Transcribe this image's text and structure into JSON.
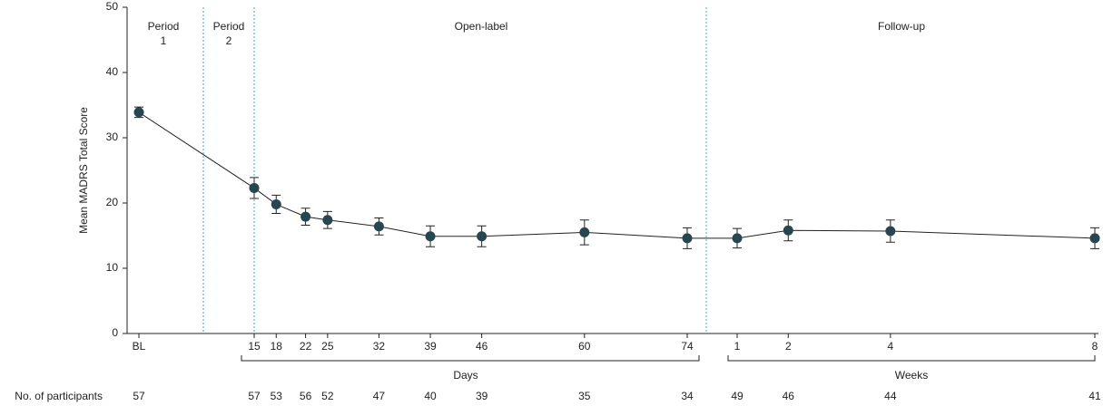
{
  "chart_data": {
    "type": "line",
    "y_label": "Mean MADRS Total Score",
    "ylim": [
      0,
      50
    ],
    "yticks": [
      0,
      10,
      20,
      30,
      40,
      50
    ],
    "categories": [
      "BL",
      15,
      18,
      22,
      25,
      32,
      39,
      46,
      60,
      74,
      1,
      2,
      4,
      8
    ],
    "x_group_labels": [
      "Days",
      "Weeks"
    ],
    "periods": [
      [
        "Period",
        "1"
      ],
      [
        "Period",
        "2"
      ],
      [
        "Open-label"
      ],
      [
        "Follow-up"
      ]
    ],
    "series": [
      {
        "name": "MADRS",
        "color": "#27464f",
        "values": [
          33.9,
          22.3,
          19.8,
          17.9,
          17.4,
          16.4,
          14.9,
          14.9,
          15.5,
          14.6,
          14.6,
          15.8,
          15.7,
          14.6
        ],
        "errors": [
          0.8,
          1.6,
          1.4,
          1.3,
          1.3,
          1.3,
          1.6,
          1.6,
          1.9,
          1.6,
          1.5,
          1.6,
          1.7,
          1.6
        ]
      }
    ],
    "participants_label": "No. of participants",
    "participants": [
      57,
      57,
      53,
      56,
      52,
      47,
      40,
      39,
      35,
      34,
      49,
      46,
      44,
      41
    ]
  }
}
